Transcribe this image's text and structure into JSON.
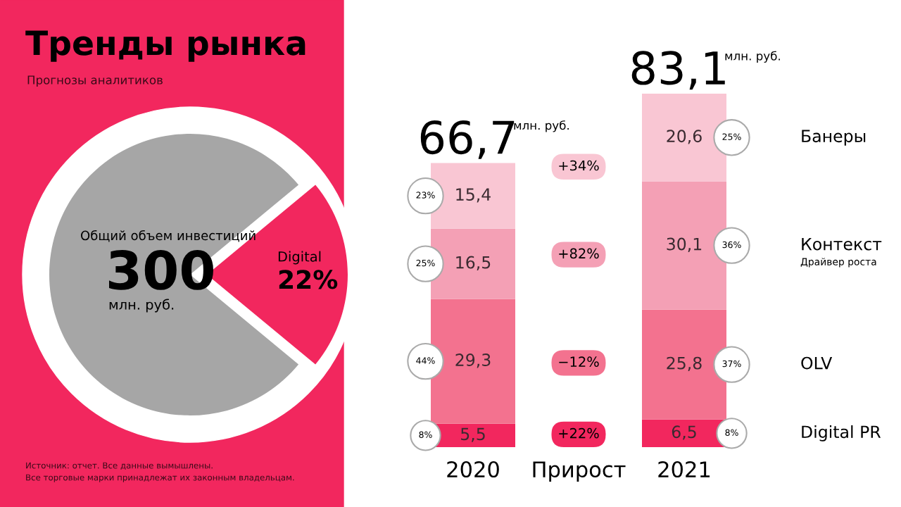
{
  "chart_data": [
    {
      "type": "pie",
      "title": "Тренды рынка",
      "subtitle": "Прогнозы аналитиков",
      "categories": [
        null,
        "Digital"
      ],
      "values": [
        78,
        22
      ],
      "colors": [
        "#a6a6a6",
        "#f2275e"
      ],
      "value_labels": [
        null,
        "22%"
      ],
      "annotations": [
        "Общий объем инвестиций",
        "300",
        "млн. руб.",
        "Источник: отчет. Все данные вымышлены.",
        "Все торговые марки принадлежат их законным владельцам."
      ]
    },
    {
      "type": "bar",
      "stacked": true,
      "categories": [
        "2020",
        "Прирост",
        "2021"
      ],
      "series": [
        {
          "name": "Digital PR",
          "color": "#f2275e",
          "values": [
            5.5,
            null,
            6.5
          ],
          "value_labels": [
            "5,5",
            null,
            "6,5"
          ]
        },
        {
          "name": "OLV",
          "color": "#f3728f",
          "values": [
            29.3,
            null,
            25.8
          ],
          "value_labels": [
            "29,3",
            null,
            "25,8"
          ]
        },
        {
          "name": "Контекст",
          "color": "#f4a0b5",
          "values": [
            16.5,
            null,
            30.1
          ],
          "value_labels": [
            "16,5",
            null,
            "30,1"
          ]
        },
        {
          "name": "Банеры",
          "color": "#f9c6d3",
          "values": [
            15.4,
            null,
            20.6
          ],
          "value_labels": [
            "15,4",
            null,
            "20,6"
          ]
        }
      ],
      "totals": [
        "66,7",
        null,
        "83,1"
      ],
      "annotations": [
        "млн. руб.",
        "Драйвер роста",
        "8%",
        "44%",
        "25%",
        "23%",
        "8%",
        "37%",
        "36%",
        "25%",
        "+22%",
        "−12%",
        "+82%",
        "+34%"
      ]
    }
  ]
}
